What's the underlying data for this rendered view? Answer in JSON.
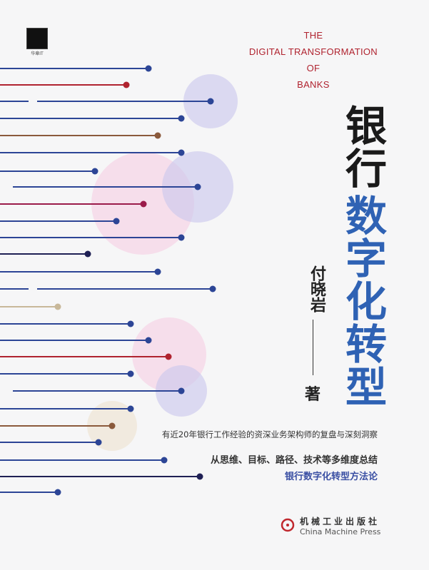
{
  "publisher_logo": {
    "text": "华章IT"
  },
  "english_title": [
    "THE",
    "DIGITAL TRANSFORMATION",
    "OF",
    "BANKS"
  ],
  "title": {
    "line1": "银行",
    "line2": "数字化转型"
  },
  "author": {
    "name": "付晓岩",
    "role": "著"
  },
  "taglines": {
    "line1": "有近20年银行工作经验的资深业务架构师的复盘与深刻洞察",
    "line2": "从思维、目标、路径、技术等多维度总结",
    "line3": "银行数字化转型方法论"
  },
  "publisher": {
    "name_cn": "机械工业出版社",
    "name_en": "China Machine Press"
  },
  "colors": {
    "background": "#f6f6f7",
    "title_blue": "#2f62b4",
    "accent_red": "#b0232f",
    "line_blue": "#2c4596"
  }
}
